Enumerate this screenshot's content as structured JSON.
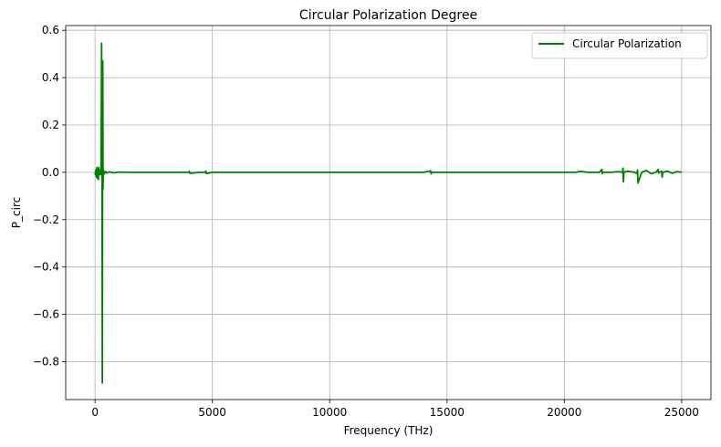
{
  "chart_data": {
    "type": "line",
    "title": "Circular Polarization Degree",
    "xlabel": "Frequency (THz)",
    "ylabel": "P_circ",
    "xlim": [
      -1250,
      26250
    ],
    "ylim": [
      -0.96,
      0.62
    ],
    "xticks": [
      0,
      5000,
      10000,
      15000,
      20000,
      25000
    ],
    "xtick_labels": [
      "0",
      "5000",
      "10000",
      "15000",
      "20000",
      "25000"
    ],
    "yticks": [
      -0.8,
      -0.6,
      -0.4,
      -0.2,
      0.0,
      0.2,
      0.4,
      0.6
    ],
    "ytick_labels": [
      "−0.8",
      "−0.6",
      "−0.4",
      "−0.2",
      "0.0",
      "0.2",
      "0.4",
      "0.6"
    ],
    "grid": true,
    "legend_position": "top-right",
    "series": [
      {
        "name": "Circular Polarization",
        "color": "#008000",
        "x": [
          0,
          20,
          40,
          60,
          80,
          100,
          120,
          140,
          160,
          180,
          200,
          220,
          240,
          260,
          280,
          300,
          310,
          320,
          330,
          340,
          350,
          360,
          380,
          400,
          450,
          500,
          600,
          800,
          1000,
          1500,
          2000,
          3000,
          4000,
          4020,
          4040,
          4500,
          4700,
          4720,
          4740,
          5000,
          6000,
          7000,
          8000,
          8500,
          9000,
          9500,
          10000,
          11000,
          12000,
          13000,
          14000,
          14300,
          14320,
          14340,
          14500,
          15000,
          16000,
          17000,
          18000,
          19000,
          20000,
          20500,
          20700,
          21000,
          21500,
          21600,
          21620,
          21640,
          22000,
          22300,
          22480,
          22500,
          22520,
          22540,
          22700,
          23000,
          23100,
          23120,
          23140,
          23300,
          23500,
          23700,
          23900,
          24000,
          24020,
          24040,
          24150,
          24170,
          24190,
          24400,
          24600,
          24800,
          25000
        ],
        "values": [
          0.0,
          -0.01,
          0.01,
          -0.02,
          0.02,
          -0.025,
          0.015,
          -0.03,
          0.02,
          -0.01,
          0.01,
          0.0,
          -0.01,
          0.02,
          0.545,
          -0.05,
          -0.89,
          0.02,
          0.47,
          -0.07,
          0.01,
          -0.01,
          0.005,
          -0.005,
          0.003,
          -0.003,
          0.002,
          -0.002,
          0.001,
          0.0,
          0.0,
          0.0,
          0.0,
          0.004,
          -0.004,
          0.0,
          0.0,
          0.005,
          -0.005,
          0.0,
          0.0,
          0.0,
          0.0,
          0.0,
          0.0,
          0.0,
          0.0,
          0.0,
          0.0,
          0.0,
          0.0,
          0.006,
          -0.006,
          0.0,
          0.0,
          0.0,
          0.0,
          0.0,
          0.0,
          0.0,
          0.0,
          0.0,
          0.004,
          0.0,
          0.0,
          0.012,
          -0.005,
          0.0,
          0.0,
          0.003,
          0.0,
          0.018,
          -0.04,
          0.0,
          0.005,
          0.0,
          -0.005,
          0.01,
          -0.045,
          0.0,
          0.008,
          -0.006,
          0.0,
          0.012,
          -0.003,
          0.0,
          0.004,
          -0.02,
          0.0,
          0.005,
          -0.004,
          0.003,
          0.0
        ]
      }
    ]
  }
}
